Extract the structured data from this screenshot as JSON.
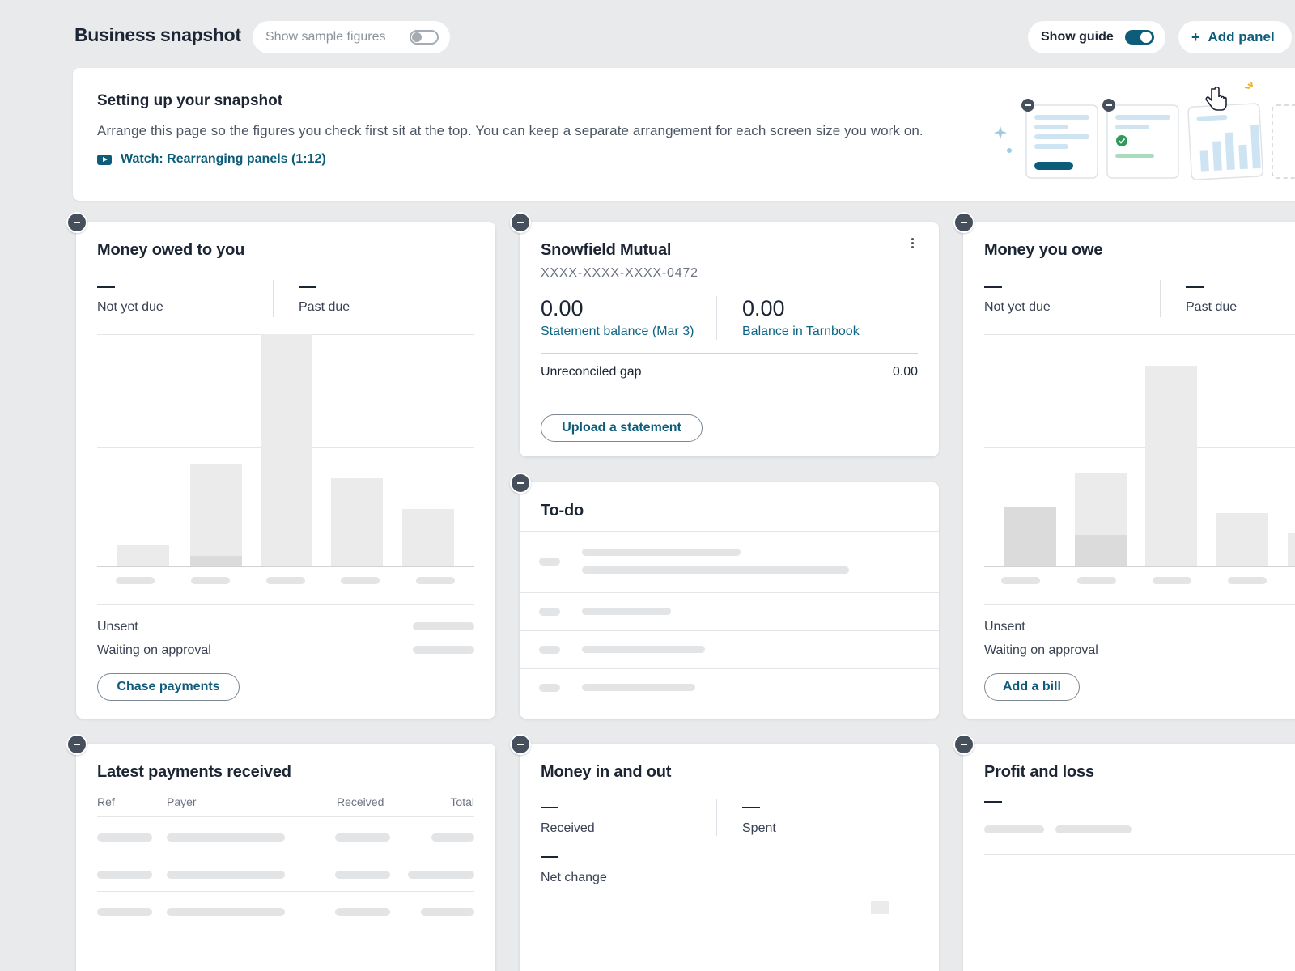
{
  "header": {
    "title": "Business snapshot",
    "sample_toggle_label": "Show sample figures",
    "guide_toggle_label": "Show guide",
    "add_panel_label": "Add panel"
  },
  "guide": {
    "title": "Setting up your snapshot",
    "text": "Arrange this page so the figures you check first sit at the top. You can keep a separate arrangement for each screen size you work on.",
    "video_link": "Watch: Rearranging panels (1:12)"
  },
  "owed_to_you": {
    "title": "Money owed to you",
    "dash": "—",
    "not_yet_due": "Not yet due",
    "past_due": "Past due",
    "unsent": "Unsent",
    "waiting": "Waiting on approval",
    "button": "Chase payments"
  },
  "bank": {
    "title": "Snowfield Mutual",
    "account": "XXXX-XXXX-XXXX-0472",
    "statement_value": "0.00",
    "statement_label": "Statement balance (Mar 3)",
    "tarnbook_value": "0.00",
    "tarnbook_label": "Balance in Tarnbook",
    "gap_label": "Unreconciled gap",
    "gap_value": "0.00",
    "button": "Upload a statement"
  },
  "todo": {
    "title": "To-do"
  },
  "you_owe": {
    "title": "Money you owe",
    "dash": "—",
    "not_yet_due": "Not yet due",
    "past_due": "Past due",
    "unsent": "Unsent",
    "waiting": "Waiting on approval",
    "button": "Add a bill"
  },
  "payments": {
    "title": "Latest payments received",
    "columns": [
      "Ref",
      "Payer",
      "Received",
      "Total"
    ]
  },
  "money_in_out": {
    "title": "Money in and out",
    "dash": "—",
    "received": "Received",
    "spent": "Spent",
    "net_change": "Net change"
  },
  "profit_loss": {
    "title": "Profit and loss",
    "dash": "—"
  },
  "colors": {
    "accent": "#0d5c7a",
    "background": "#e9eaec",
    "remove_badge": "#46505c"
  }
}
